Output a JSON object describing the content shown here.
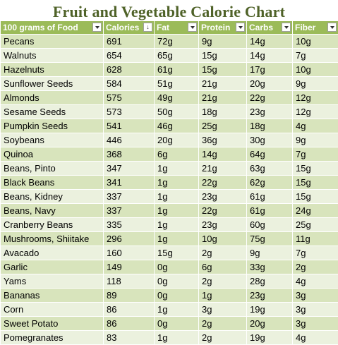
{
  "title": "Fruit and Vegetable Calorie Chart",
  "columns": [
    "100 grams of Food",
    "Calories",
    "Fat",
    "Protein",
    "Carbs",
    "Fiber"
  ],
  "rows": [
    [
      "Pecans",
      "691",
      "72g",
      "9g",
      "14g",
      "10g"
    ],
    [
      "Walnuts",
      "654",
      "65g",
      "15g",
      "14g",
      "7g"
    ],
    [
      "Hazelnuts",
      "628",
      "61g",
      "15g",
      "17g",
      "10g"
    ],
    [
      "Sunflower Seeds",
      "584",
      "51g",
      "21g",
      "20g",
      "9g"
    ],
    [
      "Almonds",
      "575",
      "49g",
      "21g",
      "22g",
      "12g"
    ],
    [
      "Sesame Seeds",
      "573",
      "50g",
      "18g",
      "23g",
      "12g"
    ],
    [
      "Pumpkin Seeds",
      "541",
      "46g",
      "25g",
      "18g",
      "4g"
    ],
    [
      "Soybeans",
      "446",
      "20g",
      "36g",
      "30g",
      "9g"
    ],
    [
      "Quinoa",
      "368",
      "6g",
      "14g",
      "64g",
      "7g"
    ],
    [
      "Beans, Pinto",
      "347",
      "1g",
      "21g",
      "63g",
      "15g"
    ],
    [
      "Black Beans",
      "341",
      "1g",
      "22g",
      "62g",
      "15g"
    ],
    [
      "Beans, Kidney",
      "337",
      "1g",
      "23g",
      "61g",
      "15g"
    ],
    [
      "Beans, Navy",
      "337",
      "1g",
      "22g",
      "61g",
      "24g"
    ],
    [
      "Cranberry Beans",
      "335",
      "1g",
      "23g",
      "60g",
      "25g"
    ],
    [
      "Mushrooms, Shiitake",
      "296",
      "1g",
      "10g",
      "75g",
      "11g"
    ],
    [
      "Avacado",
      "160",
      "15g",
      "2g",
      "9g",
      "7g"
    ],
    [
      "Garlic",
      "149",
      "0g",
      "6g",
      "33g",
      "2g"
    ],
    [
      "Yams",
      "118",
      "0g",
      "2g",
      "28g",
      "4g"
    ],
    [
      "Bananas",
      "89",
      "0g",
      "1g",
      "23g",
      "3g"
    ],
    [
      "Corn",
      "86",
      "1g",
      "3g",
      "19g",
      "3g"
    ],
    [
      "Sweet Potato",
      "86",
      "0g",
      "2g",
      "20g",
      "3g"
    ],
    [
      "Pomegranates",
      "83",
      "1g",
      "2g",
      "19g",
      "4g"
    ]
  ],
  "colors": {
    "header": "#9bbb59",
    "odd_row": "#d8e4bc",
    "even_row": "#ebf1de",
    "title": "#4f6228"
  },
  "icons": {
    "filter": "filter-dropdown-icon",
    "sorted": "sort-descending-filter-icon"
  }
}
